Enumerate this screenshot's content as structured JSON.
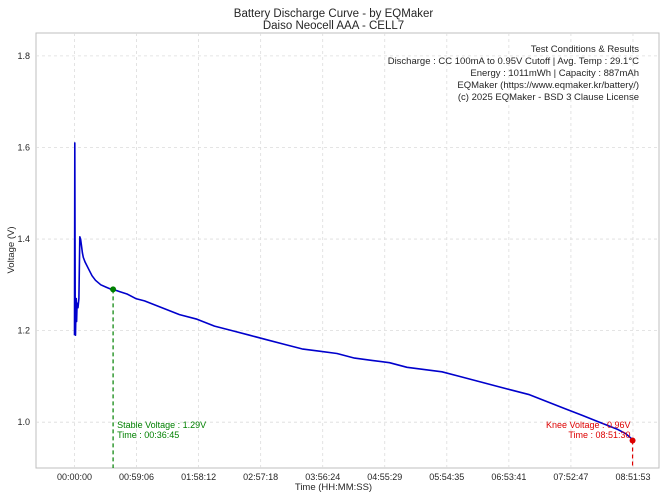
{
  "chart_data": {
    "type": "line",
    "title": "Battery Discharge Curve - by EQMaker",
    "subtitle": "Daiso Neocell AAA - CELL7",
    "xlabel": "Time (HH:MM:SS)",
    "ylabel": "Voltage (V)",
    "xlim_seconds": [
      -2200,
      33400
    ],
    "ylim": [
      0.9,
      1.85
    ],
    "x_ticks": [
      {
        "seconds": 0,
        "label": "00:00:00"
      },
      {
        "seconds": 3546,
        "label": "00:59:06"
      },
      {
        "seconds": 7092,
        "label": "01:58:12"
      },
      {
        "seconds": 10638,
        "label": "02:57:18"
      },
      {
        "seconds": 14184,
        "label": "03:56:24"
      },
      {
        "seconds": 17729,
        "label": "04:55:29"
      },
      {
        "seconds": 21275,
        "label": "05:54:35"
      },
      {
        "seconds": 24821,
        "label": "06:53:41"
      },
      {
        "seconds": 28367,
        "label": "07:52:47"
      },
      {
        "seconds": 31913,
        "label": "08:51:53"
      }
    ],
    "y_ticks": [
      {
        "value": 1.0,
        "label": "1.0"
      },
      {
        "value": 1.2,
        "label": "1.2"
      },
      {
        "value": 1.4,
        "label": "1.4"
      },
      {
        "value": 1.6,
        "label": "1.6"
      },
      {
        "value": 1.8,
        "label": "1.8"
      }
    ],
    "grid": true,
    "series": [
      {
        "name": "Voltage",
        "color": "#0000cc",
        "x_seconds": [
          0,
          20,
          40,
          60,
          80,
          100,
          120,
          150,
          200,
          250,
          300,
          350,
          400,
          450,
          500,
          600,
          800,
          1000,
          1200,
          1500,
          1800,
          2100,
          2205,
          2600,
          3000,
          3500,
          4000,
          5000,
          6000,
          7000,
          8000,
          9000,
          10000,
          11000,
          12000,
          13000,
          14000,
          15000,
          16000,
          17000,
          18000,
          19000,
          20000,
          21000,
          22000,
          23000,
          24000,
          25000,
          26000,
          27000,
          28000,
          29000,
          30000,
          31000,
          31500,
          31800,
          31913
        ],
        "voltage": [
          1.19,
          1.61,
          1.25,
          1.19,
          1.24,
          1.27,
          1.22,
          1.26,
          1.25,
          1.27,
          1.405,
          1.4,
          1.385,
          1.37,
          1.36,
          1.35,
          1.335,
          1.32,
          1.31,
          1.3,
          1.295,
          1.29,
          1.29,
          1.285,
          1.28,
          1.27,
          1.265,
          1.25,
          1.235,
          1.225,
          1.21,
          1.2,
          1.19,
          1.18,
          1.17,
          1.16,
          1.155,
          1.15,
          1.14,
          1.135,
          1.13,
          1.12,
          1.115,
          1.11,
          1.1,
          1.09,
          1.08,
          1.07,
          1.06,
          1.045,
          1.03,
          1.015,
          1.0,
          0.985,
          0.975,
          0.965,
          0.96
        ]
      }
    ],
    "annotations": {
      "stable": {
        "time_seconds": 2205,
        "voltage": 1.29,
        "color": "#008000",
        "line1": "Stable Voltage : 1.29V",
        "line2": "Time : 00:36:45"
      },
      "knee": {
        "time_seconds": 31890,
        "voltage": 0.96,
        "color": "#dd0000",
        "line1": "Knee Voltage : 0.96V",
        "line2": "Time : 08:51:30"
      }
    },
    "info_box": [
      "Test Conditions & Results",
      "Discharge : CC 100mA to 0.95V Cutoff | Avg. Temp : 29.1°C",
      "Energy : 1011mWh | Capacity : 887mAh",
      "EQMaker (https://www.eqmaker.kr/battery/)",
      "(c) 2025 EQMaker - BSD 3 Clause License"
    ]
  }
}
